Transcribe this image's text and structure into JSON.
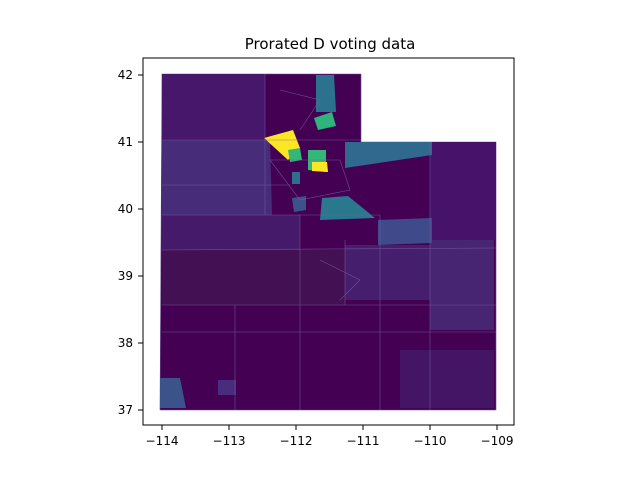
{
  "chart_data": {
    "type": "choropleth",
    "title": "Prorated D voting data",
    "xlabel": "",
    "ylabel": "",
    "xlim": [
      -114.2,
      -108.8
    ],
    "ylim": [
      36.8,
      42.3
    ],
    "xticks": [
      -114,
      -113,
      -112,
      -111,
      -110,
      -109
    ],
    "yticks": [
      37,
      38,
      39,
      40,
      41,
      42
    ],
    "xtick_labels": [
      "−114",
      "−113",
      "−112",
      "−111",
      "−110",
      "−109"
    ],
    "ytick_labels": [
      "37",
      "38",
      "39",
      "40",
      "41",
      "42"
    ],
    "colormap": "viridis",
    "grid": false,
    "legend": "none",
    "boundary_color": "#7a5fa0",
    "colors": {
      "low": "#440154",
      "low_mid": "#482878",
      "mid": "#31688e",
      "mid_high": "#35b779",
      "high": "#fde725"
    }
  }
}
